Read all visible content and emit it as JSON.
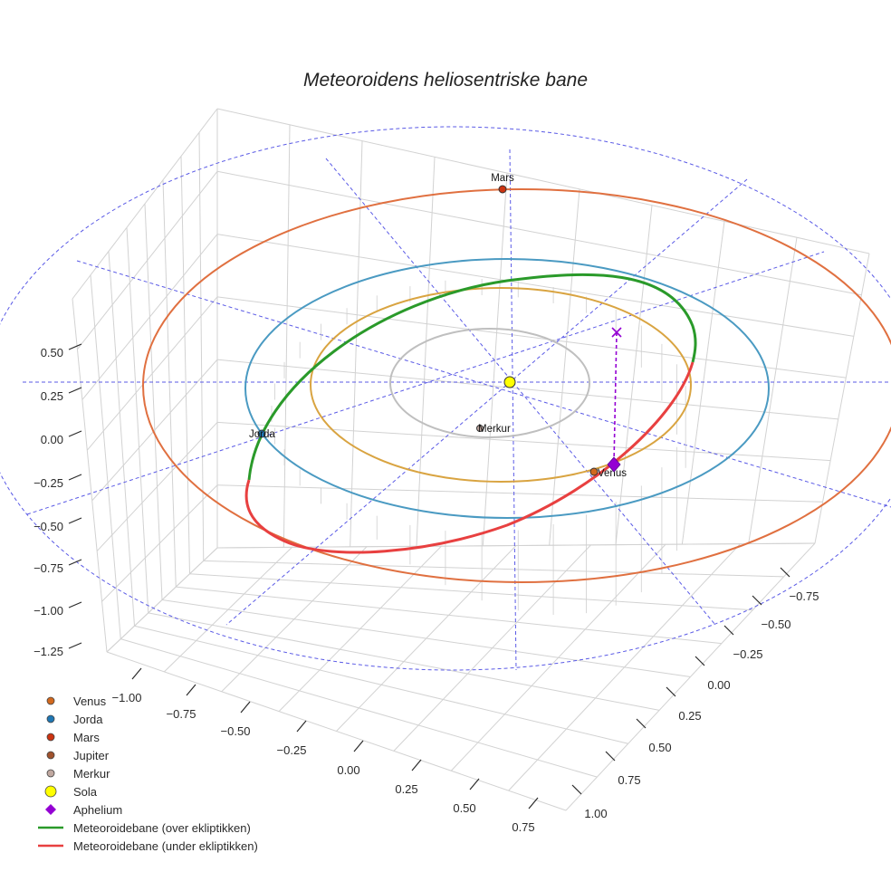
{
  "chart_data": {
    "type": "scatter3d",
    "title": "Meteoroidens heliosentriske bane",
    "axes": {
      "x": {
        "ticks": [
          "−1.00",
          "−0.75",
          "−0.50",
          "−0.25",
          "0.00",
          "0.25",
          "0.50",
          "0.75"
        ],
        "range": [
          -1.0,
          0.75
        ]
      },
      "y": {
        "ticks": [
          "−0.75",
          "−0.50",
          "−0.25",
          "0.00",
          "0.25",
          "0.50",
          "0.75",
          "1.00"
        ],
        "range": [
          -0.75,
          1.0
        ]
      },
      "z": {
        "ticks": [
          "0.50",
          "0.25",
          "0.00",
          "−0.25",
          "−0.50",
          "−0.75",
          "−1.00",
          "−1.25"
        ],
        "range": [
          -1.25,
          0.5
        ]
      }
    },
    "grid": true,
    "legend_position": "bottom-left",
    "series": [
      {
        "name": "Venus",
        "kind": "marker",
        "color": "#d2691e",
        "marker": "circle",
        "label": "Venus"
      },
      {
        "name": "Jorda",
        "kind": "marker",
        "color": "#1f77b4",
        "marker": "circle",
        "label": "Jorda"
      },
      {
        "name": "Mars",
        "kind": "marker",
        "color": "#cc3311",
        "marker": "circle",
        "label": "Mars"
      },
      {
        "name": "Jupiter",
        "kind": "marker",
        "color": "#a0522d",
        "marker": "circle"
      },
      {
        "name": "Merkur",
        "kind": "marker",
        "color": "#c0a8a0",
        "marker": "circle",
        "label": "Merkur"
      },
      {
        "name": "Sola",
        "kind": "marker",
        "color": "#ffff00",
        "marker": "circle-large"
      },
      {
        "name": "Aphelium",
        "kind": "marker",
        "color": "#9400d3",
        "marker": "diamond"
      },
      {
        "name": "Meteoroidebane (over ekliptikken)",
        "kind": "line",
        "color": "#2a9a2a"
      },
      {
        "name": "Meteoroidebane (under ekliptikken)",
        "kind": "line",
        "color": "#e84040"
      }
    ],
    "orbits": [
      {
        "name": "Merkur",
        "color": "#bfbfbf",
        "a": 0.387
      },
      {
        "name": "Venus",
        "color": "#d9a441",
        "a": 0.723
      },
      {
        "name": "Jorda",
        "color": "#4a9ac2",
        "a": 1.0
      },
      {
        "name": "Mars",
        "color": "#e07040",
        "a": 1.524
      }
    ]
  }
}
